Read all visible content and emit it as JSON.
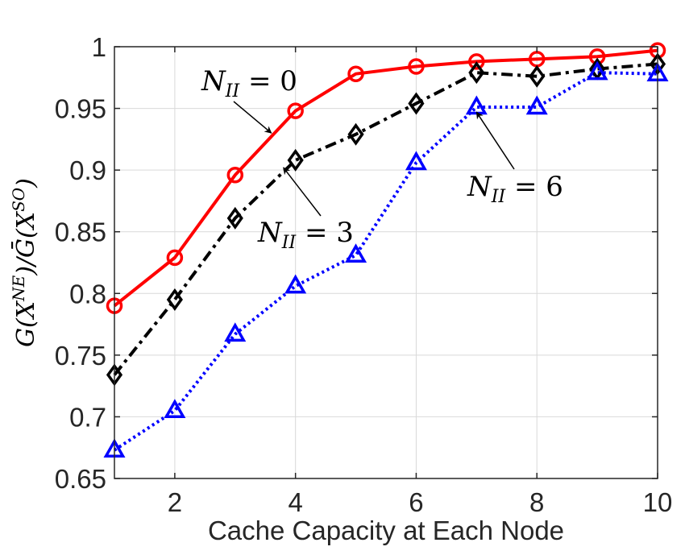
{
  "chart_data": {
    "type": "line",
    "title": "",
    "xlabel": "Cache Capacity at Each Node",
    "ylabel": "G(X^NE)/Ḡ(X^SO)",
    "xlim": [
      1,
      10
    ],
    "ylim": [
      0.65,
      1
    ],
    "grid": true,
    "x": [
      1,
      2,
      3,
      4,
      5,
      6,
      7,
      8,
      9,
      10
    ],
    "x_ticks": [
      2,
      4,
      6,
      8,
      10
    ],
    "x_tick_labels": [
      "2",
      "4",
      "6",
      "8",
      "10"
    ],
    "y_ticks": [
      0.65,
      0.7,
      0.75,
      0.8,
      0.85,
      0.9,
      0.95,
      1
    ],
    "y_tick_labels": [
      "0.65",
      "0.7",
      "0.75",
      "0.8",
      "0.85",
      "0.9",
      "0.95",
      "1"
    ],
    "series": [
      {
        "name": "N_II = 0",
        "color": "#ff0000",
        "line_style": "solid",
        "marker": "circle",
        "values": [
          0.79,
          0.829,
          0.896,
          0.948,
          0.978,
          0.984,
          0.988,
          0.99,
          0.992,
          0.997
        ]
      },
      {
        "name": "N_II = 3",
        "color": "#000000",
        "line_style": "dashdot",
        "marker": "diamond",
        "values": [
          0.734,
          0.795,
          0.861,
          0.908,
          0.929,
          0.954,
          0.979,
          0.976,
          0.982,
          0.986
        ]
      },
      {
        "name": "N_II = 6",
        "color": "#0000ff",
        "line_style": "dotted",
        "marker": "triangle",
        "values": [
          0.673,
          0.705,
          0.767,
          0.806,
          0.831,
          0.906,
          0.951,
          0.951,
          0.979,
          0.978
        ]
      }
    ],
    "annotations": [
      {
        "text": "N_II = 0",
        "main": "N",
        "sub": "II",
        "rhs": " = 0",
        "points_to": {
          "x": 3.6,
          "y": 0.93
        }
      },
      {
        "text": "N_II = 3",
        "main": "N",
        "sub": "II",
        "rhs": " = 3",
        "points_to": {
          "x": 3.8,
          "y": 0.902
        }
      },
      {
        "text": "N_II = 6",
        "main": "N",
        "sub": "II",
        "rhs": " = 6",
        "points_to": {
          "x": 7.0,
          "y": 0.947
        }
      }
    ]
  }
}
